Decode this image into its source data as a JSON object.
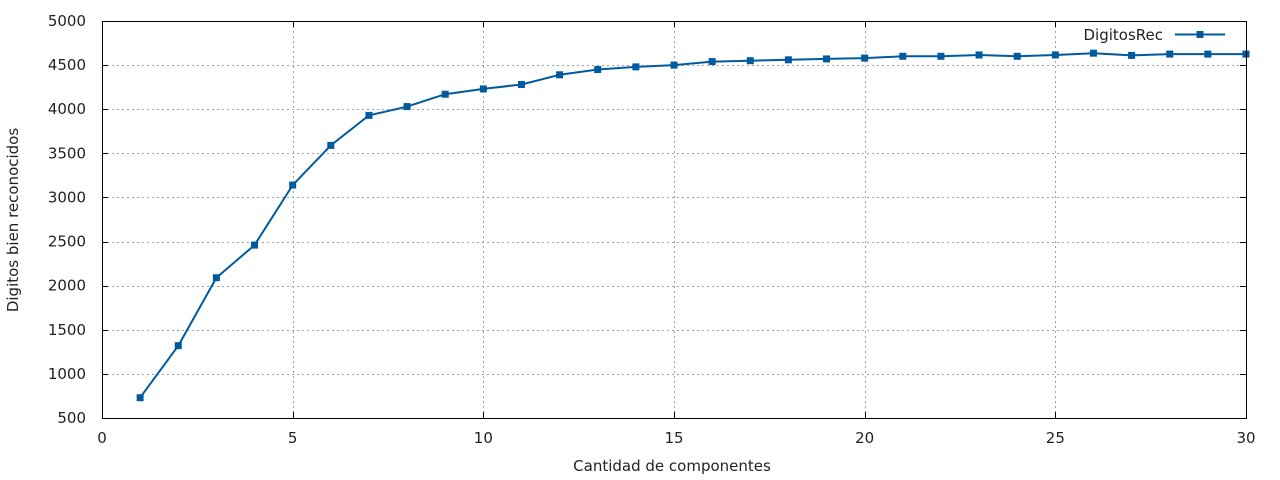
{
  "chart_data": {
    "type": "line",
    "xlabel": "Cantidad de componentes",
    "ylabel": "Digitos bien reconocidos",
    "xlim": [
      0,
      30
    ],
    "ylim": [
      500,
      5000
    ],
    "xticks": [
      0,
      5,
      10,
      15,
      20,
      25,
      30
    ],
    "yticks": [
      500,
      1000,
      1500,
      2000,
      2500,
      3000,
      3500,
      4000,
      4500,
      5000
    ],
    "grid": true,
    "legend_position": "top-right",
    "series": [
      {
        "name": "DigitosRec",
        "color": "#005aa0",
        "marker": "filled-square",
        "x": [
          1,
          2,
          3,
          4,
          5,
          6,
          7,
          8,
          9,
          10,
          11,
          12,
          13,
          14,
          15,
          16,
          17,
          18,
          19,
          20,
          21,
          22,
          23,
          24,
          25,
          26,
          27,
          28,
          29,
          30
        ],
        "values": [
          730,
          1320,
          2090,
          2460,
          3140,
          3590,
          3930,
          4030,
          4170,
          4230,
          4280,
          4390,
          4450,
          4480,
          4500,
          4540,
          4550,
          4560,
          4570,
          4580,
          4600,
          4600,
          4615,
          4600,
          4615,
          4635,
          4610,
          4625,
          4625,
          4625
        ]
      }
    ]
  }
}
